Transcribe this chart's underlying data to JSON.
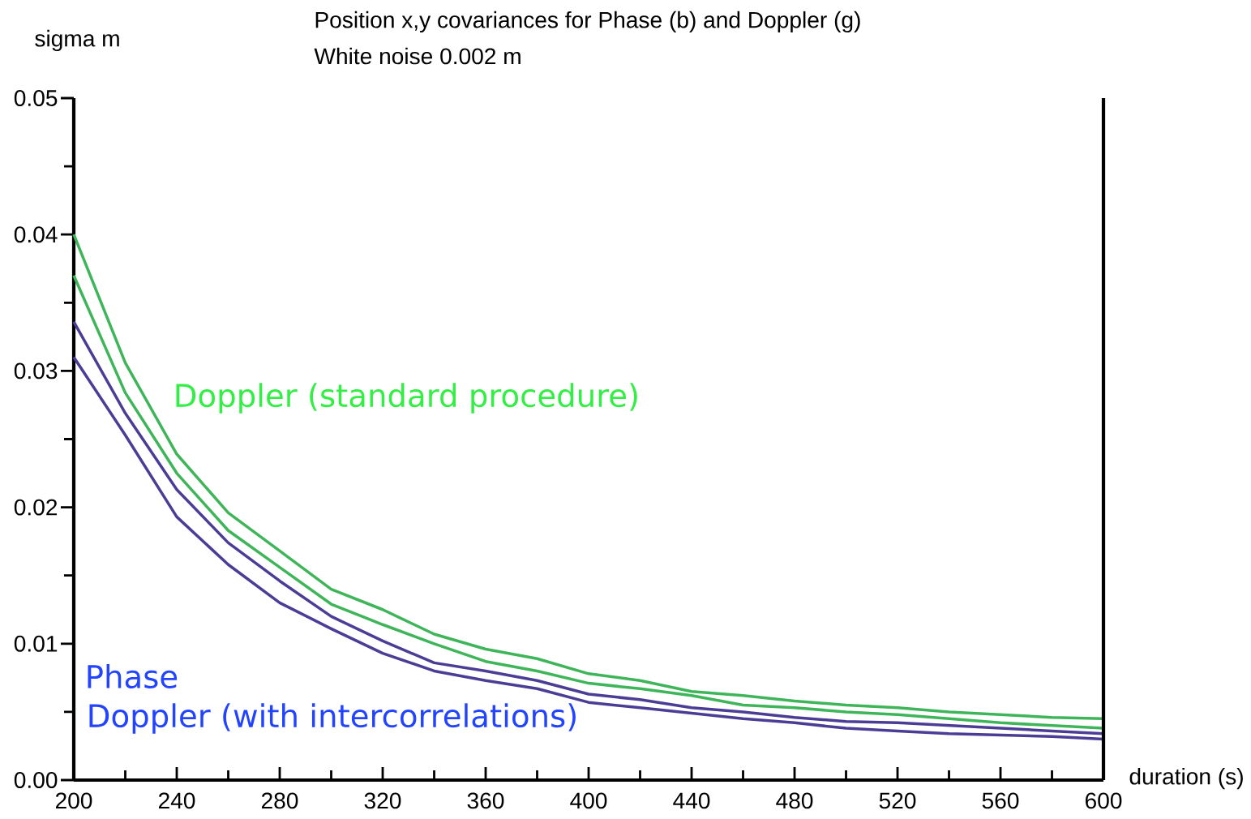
{
  "chart_data": {
    "type": "line",
    "title": "Position x,y covariances for Phase (b) and Doppler (g)",
    "subtitle": "White noise 0.002 m",
    "xlabel": "duration (s)",
    "ylabel": "sigma m",
    "annotations": [
      "Doppler (standard procedure)",
      "Phase",
      "Doppler (with intercorrelations)"
    ],
    "x": [
      200,
      220,
      240,
      260,
      280,
      300,
      320,
      340,
      360,
      380,
      400,
      420,
      440,
      460,
      480,
      500,
      520,
      540,
      560,
      580,
      600
    ],
    "series": [
      {
        "color": "#3fb55a",
        "values": [
          0.04,
          0.0306,
          0.0239,
          0.0196,
          0.0168,
          0.014,
          0.0125,
          0.0107,
          0.0096,
          0.0089,
          0.0078,
          0.0073,
          0.0065,
          0.0062,
          0.0058,
          0.0055,
          0.0053,
          0.005,
          0.0048,
          0.0046,
          0.0045
        ]
      },
      {
        "color": "#3fb55a",
        "values": [
          0.037,
          0.0284,
          0.0225,
          0.0183,
          0.0156,
          0.0129,
          0.0114,
          0.01,
          0.0087,
          0.008,
          0.0071,
          0.0067,
          0.0062,
          0.0055,
          0.0053,
          0.005,
          0.0048,
          0.0045,
          0.0042,
          0.004,
          0.0038
        ]
      },
      {
        "color": "#4b3d96",
        "values": [
          0.0336,
          0.0269,
          0.0213,
          0.0174,
          0.0146,
          0.012,
          0.0102,
          0.0086,
          0.008,
          0.0073,
          0.0063,
          0.0059,
          0.0053,
          0.005,
          0.0046,
          0.0043,
          0.0042,
          0.004,
          0.0038,
          0.0036,
          0.0034
        ]
      },
      {
        "color": "#4b3d96",
        "values": [
          0.031,
          0.0253,
          0.0193,
          0.0158,
          0.013,
          0.0111,
          0.0093,
          0.008,
          0.0073,
          0.0067,
          0.0057,
          0.0053,
          0.0049,
          0.0045,
          0.0042,
          0.0038,
          0.0036,
          0.0034,
          0.0033,
          0.0032,
          0.003
        ]
      }
    ],
    "xlim": [
      200,
      600
    ],
    "ylim": [
      0,
      0.05
    ],
    "xticks": [
      200,
      {
        "value": 220,
        "label": null
      },
      240,
      {
        "value": 260,
        "label": null
      },
      280,
      {
        "value": 300,
        "label": null
      },
      320,
      {
        "value": 340,
        "label": null
      },
      360,
      {
        "value": 380,
        "label": null
      },
      400,
      {
        "value": 420,
        "label": null
      },
      440,
      {
        "value": 460,
        "label": null
      },
      480,
      {
        "value": 500,
        "label": null
      },
      520,
      {
        "value": 540,
        "label": null
      },
      560,
      {
        "value": 580,
        "label": null
      },
      600
    ],
    "yticks": [
      {
        "value": 0,
        "label": "0.00"
      },
      {
        "value": 0.005,
        "label": null
      },
      {
        "value": 0.01,
        "label": "0.01"
      },
      {
        "value": 0.015,
        "label": null
      },
      {
        "value": 0.02,
        "label": "0.02"
      },
      {
        "value": 0.025,
        "label": null
      },
      {
        "value": 0.03,
        "label": "0.03"
      },
      {
        "value": 0.035,
        "label": null
      },
      {
        "value": 0.04,
        "label": "0.04"
      },
      {
        "value": 0.045,
        "label": null
      },
      {
        "value": 0.05,
        "label": "0.05"
      }
    ],
    "grid": false,
    "legend": false,
    "marker": "none",
    "line_style": "solid"
  }
}
